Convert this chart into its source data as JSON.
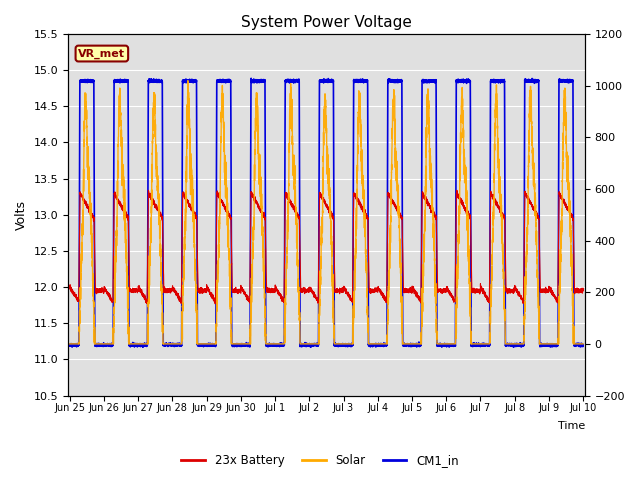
{
  "title": "System Power Voltage",
  "xlabel": "Time",
  "ylabel": "Volts",
  "xlim_start": 0,
  "xlim_end": 15,
  "ylim_left": [
    10.5,
    15.5
  ],
  "ylim_right": [
    -200,
    1200
  ],
  "yticks_left": [
    10.5,
    11.0,
    11.5,
    12.0,
    12.5,
    13.0,
    13.5,
    14.0,
    14.5,
    15.0,
    15.5
  ],
  "yticks_right": [
    -200,
    0,
    200,
    400,
    600,
    800,
    1000,
    1200
  ],
  "xtick_positions": [
    0,
    1,
    2,
    3,
    4,
    5,
    6,
    7,
    8,
    9,
    10,
    11,
    12,
    13,
    14,
    15
  ],
  "xtick_labels": [
    "Jun 25",
    "Jun 26",
    "Jun 27",
    "Jun 28",
    "Jun 29",
    "Jun 30",
    "Jul 1",
    "Jul 2",
    "Jul 3",
    "Jul 4",
    "Jul 5",
    "Jul 6",
    "Jul 7",
    "Jul 8",
    "Jul 9",
    "Jul 10"
  ],
  "background_color": "#e0e0e0",
  "figure_bg": "#ffffff",
  "line_colors": {
    "battery": "#dd0000",
    "solar": "#ffaa00",
    "cm1": "#0000dd"
  },
  "line_widths": {
    "battery": 0.8,
    "solar": 1.0,
    "cm1": 1.2
  },
  "legend_labels": [
    "23x Battery",
    "Solar",
    "CM1_in"
  ],
  "annotation_text": "VR_met",
  "annotation_box_color": "#ffffaa",
  "annotation_border_color": "#880000",
  "num_days": 15,
  "day_start": 0.27,
  "day_end": 0.73,
  "solar_plateau": 700,
  "solar_peak": 1150,
  "battery_day_high": 13.3,
  "battery_night": 11.95,
  "battery_morning_peak": 13.5,
  "cm1_day_high": 14.85,
  "cm1_night": 11.2
}
